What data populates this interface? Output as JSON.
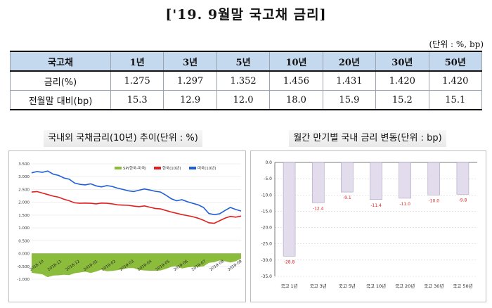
{
  "title": "['19. 9월말 국고채 금리]",
  "unit_note": "(단위 : %, bp)",
  "table": {
    "headers": [
      "국고채",
      "1년",
      "3년",
      "5년",
      "10년",
      "20년",
      "30년",
      "50년"
    ],
    "rows": [
      {
        "label": "금리(%)",
        "values": [
          "1.275",
          "1.297",
          "1.352",
          "1.456",
          "1.431",
          "1.420",
          "1.420"
        ]
      },
      {
        "label": "전월말 대비(bp)",
        "values": [
          "15.3",
          "12.9",
          "12.0",
          "18.0",
          "15.9",
          "15.2",
          "15.1"
        ]
      }
    ]
  },
  "colors": {
    "table_header": "#c5d9ee",
    "korea": "#e02020",
    "usa": "#1f5fd6",
    "spread": "#8cbc3c",
    "bar": "#e2dced"
  },
  "chart_data": [
    {
      "type": "line",
      "title": "국내외 국채금리(10년) 추이(단위 : %)",
      "ylim": [
        -1.0,
        3.5
      ],
      "yticks": [
        "3.500",
        "3.000",
        "2.500",
        "2.000",
        "1.500",
        "1.000",
        "0.500",
        "0.000",
        "-0.500",
        "-1.000"
      ],
      "xticks": [
        "2018-10",
        "2018-11",
        "2018-12",
        "2019-01",
        "2019-02",
        "2019-03",
        "2019-04",
        "2019-05",
        "2019-06",
        "2019-07",
        "2019-08",
        "2019-09"
      ],
      "legend": {
        "placement": "top",
        "entries": [
          "SP(한국-미국)",
          "한국(10년)",
          "미국(10년)"
        ]
      },
      "series": [
        {
          "name": "미국(10년)",
          "type": "line",
          "values": [
            3.15,
            3.2,
            3.17,
            3.22,
            3.1,
            3.05,
            2.95,
            2.9,
            2.75,
            2.7,
            2.68,
            2.72,
            2.64,
            2.6,
            2.65,
            2.62,
            2.55,
            2.5,
            2.45,
            2.42,
            2.47,
            2.52,
            2.48,
            2.43,
            2.4,
            2.28,
            2.14,
            2.06,
            2.1,
            2.02,
            1.96,
            1.9,
            1.8,
            1.56,
            1.52,
            1.55,
            1.68,
            1.8,
            1.72,
            1.66
          ]
        },
        {
          "name": "한국(10년)",
          "type": "line",
          "values": [
            2.4,
            2.42,
            2.36,
            2.3,
            2.24,
            2.2,
            2.12,
            2.06,
            1.98,
            1.96,
            1.97,
            1.96,
            1.94,
            1.97,
            1.96,
            1.94,
            1.9,
            1.89,
            1.88,
            1.85,
            1.83,
            1.86,
            1.81,
            1.76,
            1.74,
            1.68,
            1.62,
            1.57,
            1.52,
            1.48,
            1.44,
            1.38,
            1.3,
            1.2,
            1.18,
            1.28,
            1.38,
            1.45,
            1.42,
            1.46
          ]
        },
        {
          "name": "SP(한국-미국)",
          "type": "area",
          "values": [
            -0.75,
            -0.78,
            -0.81,
            -0.92,
            -0.86,
            -0.85,
            -0.83,
            -0.84,
            -0.77,
            -0.74,
            -0.71,
            -0.76,
            -0.7,
            -0.63,
            -0.69,
            -0.68,
            -0.65,
            -0.61,
            -0.57,
            -0.57,
            -0.64,
            -0.66,
            -0.67,
            -0.67,
            -0.66,
            -0.6,
            -0.52,
            -0.49,
            -0.58,
            -0.54,
            -0.52,
            -0.52,
            -0.5,
            -0.36,
            -0.34,
            -0.27,
            -0.3,
            -0.35,
            -0.3,
            -0.2
          ]
        }
      ]
    },
    {
      "type": "bar",
      "title": "월간 만기별 국내 금리 변동(단위 : bp)",
      "categories": [
        "국고 1년",
        "국고 3년",
        "국고 5년",
        "국고 10년",
        "국고 20년",
        "국고 30년",
        "국고 50년"
      ],
      "values": [
        -28.8,
        -12.4,
        -9.1,
        -11.4,
        -11.0,
        -10.0,
        -9.8
      ],
      "ylim": [
        -35.0,
        0.0
      ],
      "yticks": [
        "0.0",
        "-5.0",
        "-10.0",
        "-15.0",
        "-20.0",
        "-25.0",
        "-30.0",
        "-35.0"
      ],
      "data_labels": [
        "-28.8",
        "-12.4",
        "-9.1",
        "-11.4",
        "-11.0",
        "-10.0",
        "-9.8"
      ]
    }
  ]
}
